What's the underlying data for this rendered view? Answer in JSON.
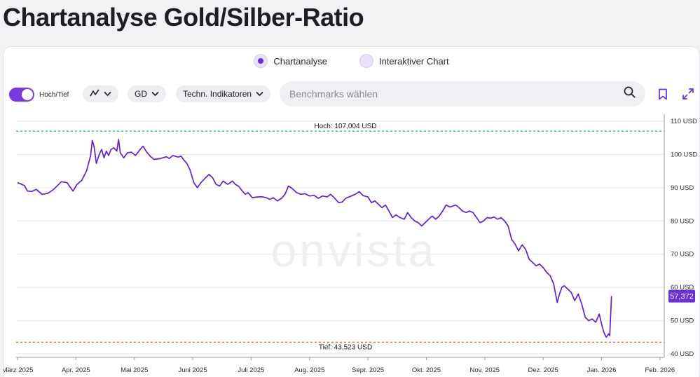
{
  "page": {
    "title": "Chartanalyse Gold/Silber-Ratio"
  },
  "view_toggle": {
    "option_1": "Chartanalyse",
    "option_2": "Interaktiver Chart",
    "selected": "Chartanalyse"
  },
  "toolbar": {
    "hochtief_label": "Hoch/Tief",
    "hochtief_on": true,
    "chart_type_icon": "line-chart-icon",
    "exchange_label": "GD",
    "indicators_label": "Techn. Indikatoren",
    "search_placeholder": "Benchmarks wählen",
    "search_value": ""
  },
  "colors": {
    "accent": "#6b2fd6",
    "line": "#6421c9",
    "high_line": "#2fb486",
    "low_line": "#f0643c"
  },
  "watermark": "onvista",
  "chart_data": {
    "type": "line",
    "title": "",
    "xlabel": "",
    "ylabel": "",
    "ylim": [
      40,
      110
    ],
    "y_unit": "USD",
    "y_ticks": [
      "110 USD",
      "100 USD",
      "90 USD",
      "80 USD",
      "70 USD",
      "60 USD",
      "50 USD",
      "40 USD"
    ],
    "x_ticks": [
      "März 2025",
      "Apr. 2025",
      "Mai 2025",
      "Juni 2025",
      "Juli 2025",
      "Aug. 2025",
      "Sept. 2025",
      "Okt. 2025",
      "Nov. 2025",
      "Dez. 2025",
      "Jan. 2026",
      "Feb. 2026"
    ],
    "high_label": "Hoch: 107,004 USD",
    "high_value": 107.004,
    "low_label": "Tief: 43,523 USD",
    "low_value": 43.523,
    "last_label": "57,372",
    "last_value": 57.372,
    "grid": true,
    "series": [
      {
        "points": [
          [
            0,
            91.5
          ],
          [
            0.05,
            91.2
          ],
          [
            0.12,
            90.6
          ],
          [
            0.17,
            89.0
          ],
          [
            0.25,
            88.9
          ],
          [
            0.32,
            89.5
          ],
          [
            0.42,
            88.0
          ],
          [
            0.52,
            88.3
          ],
          [
            0.62,
            89.5
          ],
          [
            0.75,
            91.8
          ],
          [
            0.85,
            91.5
          ],
          [
            0.9,
            90.2
          ],
          [
            0.95,
            89.0
          ],
          [
            1.02,
            91.0
          ],
          [
            1.1,
            92.2
          ],
          [
            1.18,
            95.0
          ],
          [
            1.25,
            99.5
          ],
          [
            1.28,
            104.2
          ],
          [
            1.31,
            102.5
          ],
          [
            1.35,
            97.3
          ],
          [
            1.4,
            100.0
          ],
          [
            1.44,
            101.5
          ],
          [
            1.48,
            99.0
          ],
          [
            1.52,
            101.0
          ],
          [
            1.56,
            99.7
          ],
          [
            1.6,
            101.5
          ],
          [
            1.65,
            102.0
          ],
          [
            1.7,
            101.0
          ],
          [
            1.73,
            104.5
          ],
          [
            1.76,
            100.5
          ],
          [
            1.82,
            99.0
          ],
          [
            1.88,
            100.5
          ],
          [
            1.95,
            100.7
          ],
          [
            2.02,
            99.7
          ],
          [
            2.1,
            101.5
          ],
          [
            2.15,
            102.5
          ],
          [
            2.2,
            101.0
          ],
          [
            2.27,
            99.5
          ],
          [
            2.34,
            98.5
          ],
          [
            2.45,
            98.8
          ],
          [
            2.55,
            99.3
          ],
          [
            2.6,
            98.8
          ],
          [
            2.66,
            99.7
          ],
          [
            2.75,
            99.2
          ],
          [
            2.8,
            99.5
          ],
          [
            2.85,
            98.3
          ],
          [
            2.9,
            97.3
          ],
          [
            2.95,
            95.5
          ],
          [
            3.02,
            91.5
          ],
          [
            3.08,
            90.0
          ],
          [
            3.14,
            91.5
          ],
          [
            3.22,
            93.0
          ],
          [
            3.28,
            94.0
          ],
          [
            3.34,
            93.0
          ],
          [
            3.4,
            91.0
          ],
          [
            3.46,
            90.5
          ],
          [
            3.52,
            92.0
          ],
          [
            3.6,
            91.0
          ],
          [
            3.68,
            92.0
          ],
          [
            3.73,
            91.0
          ],
          [
            3.78,
            90.5
          ],
          [
            3.85,
            89.0
          ],
          [
            3.9,
            88.0
          ],
          [
            3.95,
            88.5
          ],
          [
            4.02,
            87.0
          ],
          [
            4.1,
            87.2
          ],
          [
            4.18,
            87.3
          ],
          [
            4.26,
            87.0
          ],
          [
            4.32,
            86.5
          ],
          [
            4.38,
            87.0
          ],
          [
            4.45,
            86.0
          ],
          [
            4.52,
            86.8
          ],
          [
            4.58,
            88.0
          ],
          [
            4.64,
            90.5
          ],
          [
            4.7,
            89.8
          ],
          [
            4.78,
            88.5
          ],
          [
            4.85,
            88.0
          ],
          [
            4.92,
            88.2
          ],
          [
            5.0,
            87.5
          ],
          [
            5.08,
            87.7
          ],
          [
            5.15,
            86.8
          ],
          [
            5.22,
            87.5
          ],
          [
            5.3,
            87.2
          ],
          [
            5.36,
            88.0
          ],
          [
            5.42,
            87.0
          ],
          [
            5.5,
            85.5
          ],
          [
            5.56,
            85.7
          ],
          [
            5.62,
            86.8
          ],
          [
            5.7,
            87.4
          ],
          [
            5.78,
            88.0
          ],
          [
            5.85,
            88.8
          ],
          [
            5.92,
            87.6
          ],
          [
            6.0,
            87.2
          ],
          [
            6.06,
            85.5
          ],
          [
            6.12,
            86.0
          ],
          [
            6.18,
            85.0
          ],
          [
            6.24,
            84.0
          ],
          [
            6.3,
            84.8
          ],
          [
            6.36,
            83.0
          ],
          [
            6.42,
            81.0
          ],
          [
            6.48,
            81.8
          ],
          [
            6.55,
            81.0
          ],
          [
            6.62,
            80.5
          ],
          [
            6.68,
            82.5
          ],
          [
            6.74,
            81.0
          ],
          [
            6.8,
            80.0
          ],
          [
            6.86,
            79.5
          ],
          [
            6.92,
            78.5
          ],
          [
            6.98,
            79.5
          ],
          [
            7.04,
            80.5
          ],
          [
            7.1,
            81.5
          ],
          [
            7.16,
            80.5
          ],
          [
            7.22,
            81.5
          ],
          [
            7.28,
            83.0
          ],
          [
            7.34,
            84.8
          ],
          [
            7.4,
            84.2
          ],
          [
            7.46,
            84.5
          ],
          [
            7.5,
            84.8
          ],
          [
            7.56,
            84.0
          ],
          [
            7.62,
            83.0
          ],
          [
            7.68,
            82.5
          ],
          [
            7.74,
            83.0
          ],
          [
            7.8,
            82.5
          ],
          [
            7.86,
            81.0
          ],
          [
            7.92,
            79.5
          ],
          [
            7.98,
            80.0
          ],
          [
            8.04,
            81.0
          ],
          [
            8.1,
            80.8
          ],
          [
            8.16,
            81.2
          ],
          [
            8.22,
            80.5
          ],
          [
            8.28,
            81.0
          ],
          [
            8.34,
            80.0
          ],
          [
            8.4,
            78.5
          ],
          [
            8.46,
            74.5
          ],
          [
            8.52,
            73.0
          ],
          [
            8.58,
            71.0
          ],
          [
            8.64,
            72.8
          ],
          [
            8.7,
            71.5
          ],
          [
            8.76,
            68.5
          ],
          [
            8.82,
            67.5
          ],
          [
            8.88,
            66.5
          ],
          [
            8.94,
            67.0
          ],
          [
            9.0,
            66.0
          ],
          [
            9.06,
            64.5
          ],
          [
            9.12,
            63.5
          ],
          [
            9.18,
            61.0
          ],
          [
            9.24,
            55.5
          ],
          [
            9.28,
            58.0
          ],
          [
            9.32,
            60.0
          ],
          [
            9.36,
            60.5
          ],
          [
            9.42,
            59.5
          ],
          [
            9.48,
            58.5
          ],
          [
            9.54,
            56.0
          ],
          [
            9.6,
            58.0
          ],
          [
            9.66,
            55.0
          ],
          [
            9.72,
            51.0
          ],
          [
            9.78,
            50.0
          ],
          [
            9.84,
            50.5
          ],
          [
            9.9,
            49.5
          ],
          [
            9.96,
            52.0
          ],
          [
            10.0,
            49.0
          ],
          [
            10.04,
            46.5
          ],
          [
            10.08,
            45.0
          ],
          [
            10.12,
            46.0
          ],
          [
            10.14,
            45.5
          ],
          [
            10.17,
            57.372
          ]
        ]
      }
    ]
  }
}
